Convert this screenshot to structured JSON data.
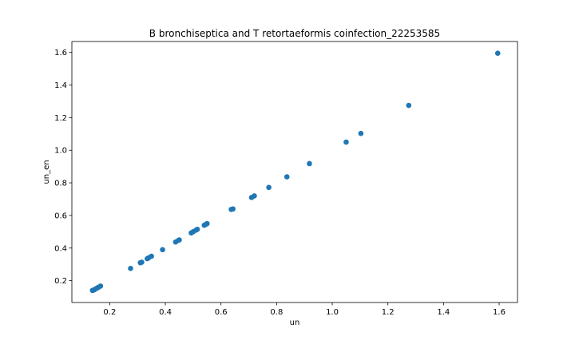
{
  "chart_data": {
    "type": "scatter",
    "title": "B bronchiseptica and T retortaeformis coinfection_22253585",
    "xlabel": "un",
    "ylabel": "un_en",
    "xlim": [
      0.064,
      1.666
    ],
    "ylim": [
      0.066,
      1.667
    ],
    "xticks": [
      "0.2",
      "0.4",
      "0.6",
      "0.8",
      "1.0",
      "1.2",
      "1.4",
      "1.6"
    ],
    "yticks": [
      "0.2",
      "0.4",
      "0.6",
      "0.8",
      "1.0",
      "1.2",
      "1.4",
      "1.6"
    ],
    "grid": false,
    "marker_color": "#1f77b4",
    "points": [
      {
        "x": 0.138,
        "y": 0.14
      },
      {
        "x": 0.142,
        "y": 0.142
      },
      {
        "x": 0.145,
        "y": 0.145
      },
      {
        "x": 0.15,
        "y": 0.15
      },
      {
        "x": 0.155,
        "y": 0.155
      },
      {
        "x": 0.16,
        "y": 0.16
      },
      {
        "x": 0.167,
        "y": 0.167
      },
      {
        "x": 0.275,
        "y": 0.275
      },
      {
        "x": 0.31,
        "y": 0.31
      },
      {
        "x": 0.315,
        "y": 0.313
      },
      {
        "x": 0.335,
        "y": 0.335
      },
      {
        "x": 0.34,
        "y": 0.34
      },
      {
        "x": 0.35,
        "y": 0.35
      },
      {
        "x": 0.39,
        "y": 0.39
      },
      {
        "x": 0.437,
        "y": 0.437
      },
      {
        "x": 0.447,
        "y": 0.447
      },
      {
        "x": 0.45,
        "y": 0.45
      },
      {
        "x": 0.493,
        "y": 0.493
      },
      {
        "x": 0.5,
        "y": 0.5
      },
      {
        "x": 0.51,
        "y": 0.51
      },
      {
        "x": 0.515,
        "y": 0.515
      },
      {
        "x": 0.54,
        "y": 0.54
      },
      {
        "x": 0.545,
        "y": 0.545
      },
      {
        "x": 0.55,
        "y": 0.55
      },
      {
        "x": 0.637,
        "y": 0.637
      },
      {
        "x": 0.643,
        "y": 0.64
      },
      {
        "x": 0.71,
        "y": 0.71
      },
      {
        "x": 0.72,
        "y": 0.72
      },
      {
        "x": 0.772,
        "y": 0.772
      },
      {
        "x": 0.837,
        "y": 0.837
      },
      {
        "x": 0.918,
        "y": 0.918
      },
      {
        "x": 1.05,
        "y": 1.05
      },
      {
        "x": 1.103,
        "y": 1.103
      },
      {
        "x": 1.275,
        "y": 1.275
      },
      {
        "x": 1.595,
        "y": 1.595
      }
    ]
  }
}
